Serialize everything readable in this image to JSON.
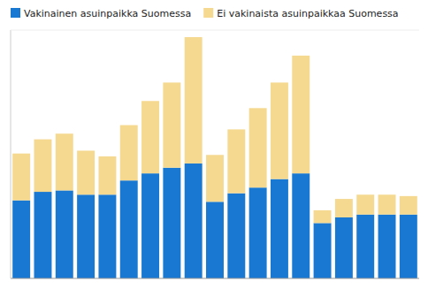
{
  "chart_data": {
    "type": "bar",
    "stacked": true,
    "categories": [
      null,
      null,
      null,
      null,
      null,
      null,
      null,
      null,
      null,
      null,
      null,
      null,
      null,
      null,
      null,
      null,
      null,
      null,
      null
    ],
    "series": [
      {
        "name": "Vakinainen asuinpaikka Suomessa",
        "color": "#1878d2",
        "values": [
          55,
          61,
          62,
          59,
          59,
          69,
          74,
          78,
          81,
          54,
          60,
          64,
          70,
          74,
          39,
          43,
          45,
          45,
          45
        ]
      },
      {
        "name": "Ei vakinaista asuinpaikkaa Suomessa",
        "color": "#f5d990",
        "values": [
          33,
          37,
          40,
          31,
          27,
          39,
          51,
          60,
          89,
          33,
          45,
          56,
          68,
          83,
          9,
          13,
          14,
          14,
          13
        ]
      }
    ],
    "ylim": [
      0,
      175
    ],
    "yticks": [],
    "grid": false,
    "legend": "upper left",
    "tick_labels": false
  }
}
